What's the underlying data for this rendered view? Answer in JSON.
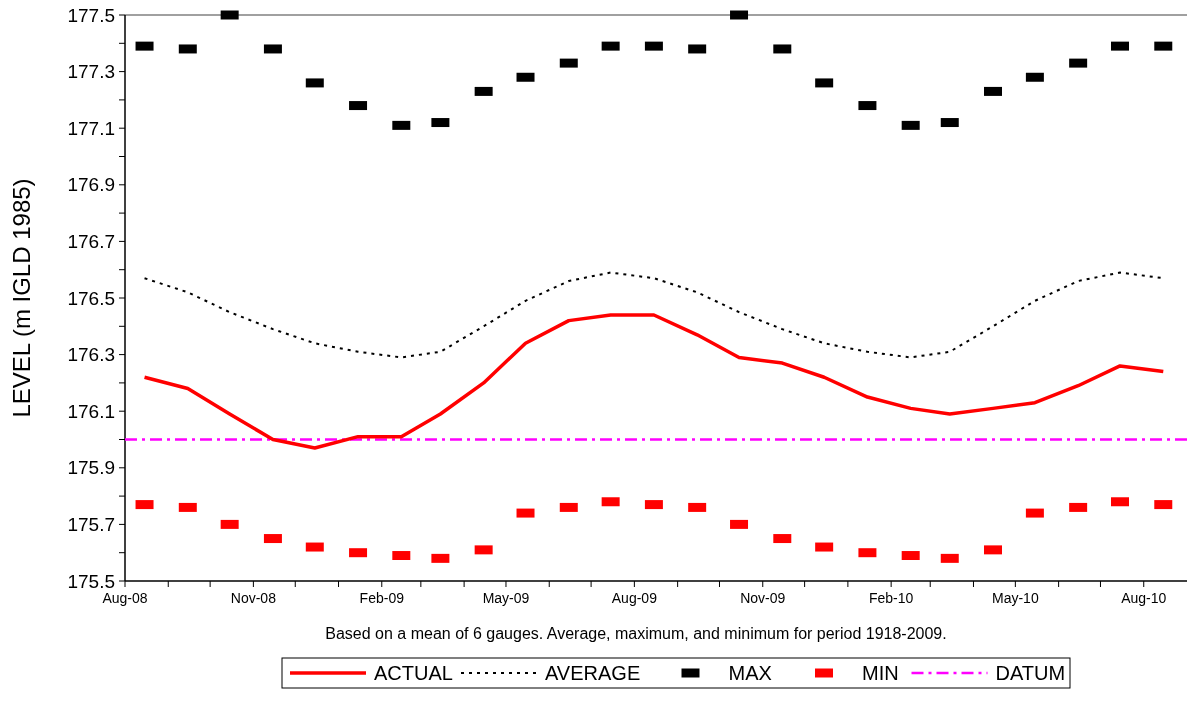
{
  "chart_data": {
    "type": "line",
    "ylabel": "LEVEL (m IGLD 1985)",
    "annotations": [
      "Based on a mean of 6 gauges.  Average, maximum, and minimum for period 1918-2009."
    ],
    "x": [
      "2008-08-15",
      "2008-09-15",
      "2008-10-15",
      "2008-11-15",
      "2008-12-15",
      "2009-01-15",
      "2009-02-15",
      "2009-03-15",
      "2009-04-15",
      "2009-05-15",
      "2009-06-15",
      "2009-07-15",
      "2009-08-15",
      "2009-09-15",
      "2009-10-15",
      "2009-11-15",
      "2009-12-15",
      "2010-01-15",
      "2010-02-15",
      "2010-03-15",
      "2010-04-15",
      "2010-05-15",
      "2010-06-15",
      "2010-07-15",
      "2010-08-15"
    ],
    "xlim": [
      "2008-08-01",
      "2010-09-01"
    ],
    "xticks": [
      {
        "value": "2008-08-01",
        "label": "Aug-08"
      },
      {
        "value": "2008-09-01",
        "label": null
      },
      {
        "value": "2008-10-01",
        "label": null
      },
      {
        "value": "2008-11-01",
        "label": "Nov-08"
      },
      {
        "value": "2008-12-01",
        "label": null
      },
      {
        "value": "2009-01-01",
        "label": null
      },
      {
        "value": "2009-02-01",
        "label": "Feb-09"
      },
      {
        "value": "2009-03-01",
        "label": null
      },
      {
        "value": "2009-04-01",
        "label": null
      },
      {
        "value": "2009-05-01",
        "label": "May-09"
      },
      {
        "value": "2009-06-01",
        "label": null
      },
      {
        "value": "2009-07-01",
        "label": null
      },
      {
        "value": "2009-08-01",
        "label": "Aug-09"
      },
      {
        "value": "2009-09-01",
        "label": null
      },
      {
        "value": "2009-10-01",
        "label": null
      },
      {
        "value": "2009-11-01",
        "label": "Nov-09"
      },
      {
        "value": "2009-12-01",
        "label": null
      },
      {
        "value": "2010-01-01",
        "label": null
      },
      {
        "value": "2010-02-01",
        "label": "Feb-10"
      },
      {
        "value": "2010-03-01",
        "label": null
      },
      {
        "value": "2010-04-01",
        "label": null
      },
      {
        "value": "2010-05-01",
        "label": "May-10"
      },
      {
        "value": "2010-06-01",
        "label": null
      },
      {
        "value": "2010-07-01",
        "label": null
      },
      {
        "value": "2010-08-01",
        "label": "Aug-10"
      }
    ],
    "ylim": [
      175.5,
      177.5
    ],
    "yticks": [
      {
        "value": 175.5,
        "label": "175.5"
      },
      {
        "value": 175.6,
        "label": null
      },
      {
        "value": 175.7,
        "label": "175.7"
      },
      {
        "value": 175.8,
        "label": null
      },
      {
        "value": 175.9,
        "label": "175.9"
      },
      {
        "value": 176.0,
        "label": null
      },
      {
        "value": 176.1,
        "label": "176.1"
      },
      {
        "value": 176.2,
        "label": null
      },
      {
        "value": 176.3,
        "label": "176.3"
      },
      {
        "value": 176.4,
        "label": null
      },
      {
        "value": 176.5,
        "label": "176.5"
      },
      {
        "value": 176.6,
        "label": null
      },
      {
        "value": 176.7,
        "label": "176.7"
      },
      {
        "value": 176.8,
        "label": null
      },
      {
        "value": 176.9,
        "label": "176.9"
      },
      {
        "value": 177.0,
        "label": null
      },
      {
        "value": 177.1,
        "label": "177.1"
      },
      {
        "value": 177.2,
        "label": null
      },
      {
        "value": 177.3,
        "label": "177.3"
      },
      {
        "value": 177.4,
        "label": null
      },
      {
        "value": 177.5,
        "label": "177.5"
      }
    ],
    "grid": false,
    "legend": "bottom",
    "series": [
      {
        "name": "ACTUAL",
        "line_style": "solid",
        "marker": "none",
        "color": "#ff0000",
        "values": [
          176.22,
          176.18,
          176.09,
          176.0,
          175.97,
          176.01,
          176.01,
          176.09,
          176.2,
          176.34,
          176.42,
          176.44,
          176.44,
          176.37,
          176.29,
          176.27,
          176.22,
          176.15,
          176.11,
          176.09,
          176.11,
          176.13,
          176.19,
          176.26,
          176.24
        ]
      },
      {
        "name": "AVERAGE",
        "line_style": "dotted",
        "marker": "none",
        "color": "#000000",
        "values": [
          176.57,
          176.52,
          176.45,
          176.39,
          176.34,
          176.31,
          176.29,
          176.31,
          176.4,
          176.49,
          176.56,
          176.59,
          176.57,
          176.52,
          176.45,
          176.39,
          176.34,
          176.31,
          176.29,
          176.31,
          176.4,
          176.49,
          176.56,
          176.59,
          176.57
        ]
      },
      {
        "name": "MAX",
        "type": "scatter",
        "marker": "square",
        "color": "#000000",
        "values": [
          177.39,
          177.38,
          177.5,
          177.38,
          177.26,
          177.18,
          177.11,
          177.12,
          177.23,
          177.28,
          177.33,
          177.39,
          177.39,
          177.38,
          177.5,
          177.38,
          177.26,
          177.18,
          177.11,
          177.12,
          177.23,
          177.28,
          177.33,
          177.39,
          177.39
        ]
      },
      {
        "name": "MIN",
        "type": "scatter",
        "marker": "square",
        "color": "#ff0000",
        "values": [
          175.77,
          175.76,
          175.7,
          175.65,
          175.62,
          175.6,
          175.59,
          175.58,
          175.61,
          175.74,
          175.76,
          175.78,
          175.77,
          175.76,
          175.7,
          175.65,
          175.62,
          175.6,
          175.59,
          175.58,
          175.61,
          175.74,
          175.76,
          175.78,
          175.77
        ]
      }
    ],
    "ref_lines": [
      {
        "axis": "y",
        "value": 176.0,
        "label": "DATUM",
        "color": "#ff00ff",
        "line_style": "dashdot"
      }
    ]
  }
}
